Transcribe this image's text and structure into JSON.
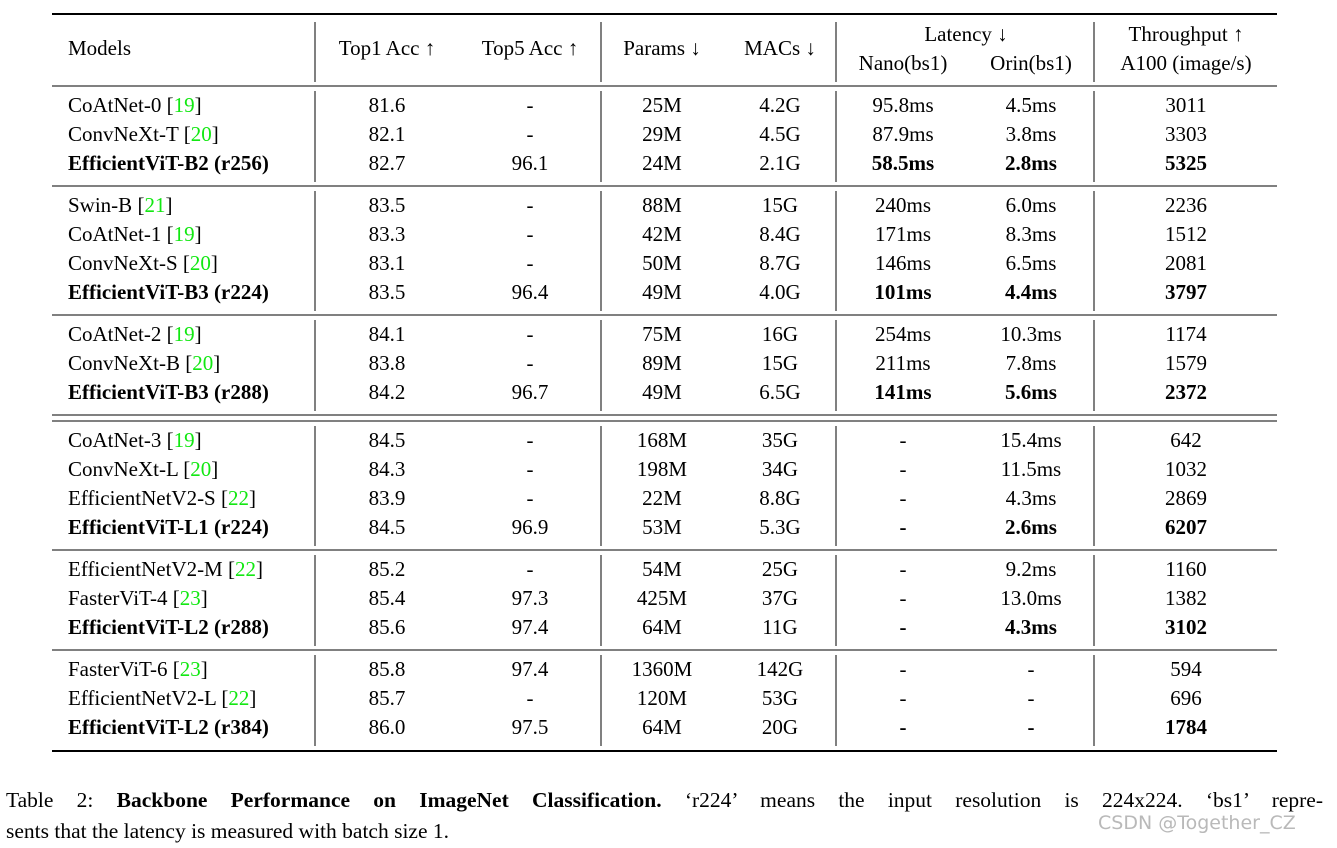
{
  "table": {
    "header": {
      "models": "Models",
      "top1": "Top1 Acc ↑",
      "top5": "Top5 Acc ↑",
      "params": "Params ↓",
      "macs": "MACs ↓",
      "latency": "Latency ↓",
      "nano": "Nano(bs1)",
      "orin": "Orin(bs1)",
      "throughput": "Throughput ↑",
      "a100": "A100 (image/s)"
    },
    "groups": [
      {
        "rows": [
          {
            "model": "CoAtNet-0",
            "ref": [
              "[",
              "19",
              "]"
            ],
            "cells": [
              "81.6",
              "-",
              "25M",
              "4.2G",
              "95.8ms",
              "4.5ms",
              "3011"
            ]
          },
          {
            "model": "ConvNeXt-T",
            "ref": [
              "[",
              "20",
              "]"
            ],
            "cells": [
              "82.1",
              "-",
              "29M",
              "4.5G",
              "87.9ms",
              "3.8ms",
              "3303"
            ]
          },
          {
            "model": "EfficientViT-B2 (r256)",
            "cells": [
              "82.7",
              "96.1",
              "24M",
              "2.1G",
              "58.5ms",
              "2.8ms",
              "5325"
            ]
          }
        ]
      },
      {
        "rows": [
          {
            "model": "Swin-B",
            "ref": [
              "[",
              "21",
              "]"
            ],
            "cells": [
              "83.5",
              "-",
              "88M",
              "15G",
              "240ms",
              "6.0ms",
              "2236"
            ]
          },
          {
            "model": "CoAtNet-1",
            "ref": [
              "[",
              "19",
              "]"
            ],
            "cells": [
              "83.3",
              "-",
              "42M",
              "8.4G",
              "171ms",
              "8.3ms",
              "1512"
            ]
          },
          {
            "model": "ConvNeXt-S",
            "ref": [
              "[",
              "20",
              "]"
            ],
            "cells": [
              "83.1",
              "-",
              "50M",
              "8.7G",
              "146ms",
              "6.5ms",
              "2081"
            ]
          },
          {
            "model": "EfficientViT-B3 (r224)",
            "cells": [
              "83.5",
              "96.4",
              "49M",
              "4.0G",
              "101ms",
              "4.4ms",
              "3797"
            ]
          }
        ]
      },
      {
        "rows": [
          {
            "model": "CoAtNet-2",
            "ref": [
              "[",
              "19",
              "]"
            ],
            "cells": [
              "84.1",
              "-",
              "75M",
              "16G",
              "254ms",
              "10.3ms",
              "1174"
            ]
          },
          {
            "model": "ConvNeXt-B",
            "ref": [
              "[",
              "20",
              "]"
            ],
            "cells": [
              "83.8",
              "-",
              "89M",
              "15G",
              "211ms",
              "7.8ms",
              "1579"
            ]
          },
          {
            "model": "EfficientViT-B3 (r288)",
            "cells": [
              "84.2",
              "96.7",
              "49M",
              "6.5G",
              "141ms",
              "5.6ms",
              "2372"
            ]
          }
        ]
      },
      {
        "rows": [
          {
            "model": "CoAtNet-3",
            "ref": [
              "[",
              "19",
              "]"
            ],
            "cells": [
              "84.5",
              "-",
              "168M",
              "35G",
              "-",
              "15.4ms",
              "642"
            ]
          },
          {
            "model": "ConvNeXt-L",
            "ref": [
              "[",
              "20",
              "]"
            ],
            "cells": [
              "84.3",
              "-",
              "198M",
              "34G",
              "-",
              "11.5ms",
              "1032"
            ]
          },
          {
            "model": "EfficientNetV2-S",
            "ref": [
              "[",
              "22",
              "]"
            ],
            "cells": [
              "83.9",
              "-",
              "22M",
              "8.8G",
              "-",
              "4.3ms",
              "2869"
            ]
          },
          {
            "model": "EfficientViT-L1 (r224)",
            "cells": [
              "84.5",
              "96.9",
              "53M",
              "5.3G",
              "-",
              "2.6ms",
              "6207"
            ]
          }
        ]
      },
      {
        "rows": [
          {
            "model": "EfficientNetV2-M",
            "ref": [
              "[",
              "22",
              "]"
            ],
            "cells": [
              "85.2",
              "-",
              "54M",
              "25G",
              "-",
              "9.2ms",
              "1160"
            ]
          },
          {
            "model": "FasterViT-4",
            "ref": [
              "[",
              "23",
              "]"
            ],
            "cells": [
              "85.4",
              "97.3",
              "425M",
              "37G",
              "-",
              "13.0ms",
              "1382"
            ]
          },
          {
            "model": "EfficientViT-L2 (r288)",
            "cells": [
              "85.6",
              "97.4",
              "64M",
              "11G",
              "-",
              "4.3ms",
              "3102"
            ]
          }
        ]
      },
      {
        "rows": [
          {
            "model": "FasterViT-6",
            "ref": [
              "[",
              "23",
              "]"
            ],
            "cells": [
              "85.8",
              "97.4",
              "1360M",
              "142G",
              "-",
              "-",
              "594"
            ]
          },
          {
            "model": "EfficientNetV2-L",
            "ref": [
              "[",
              "22",
              "]"
            ],
            "cells": [
              "85.7",
              "-",
              "120M",
              "53G",
              "-",
              "-",
              "696"
            ]
          },
          {
            "model": "EfficientViT-L2 (r384)",
            "cells": [
              "86.0",
              "97.5",
              "64M",
              "20G",
              "-",
              "-",
              "1784"
            ]
          }
        ]
      }
    ]
  },
  "caption": {
    "label": "Table 2:",
    "title": "Backbone Performance on ImageNet Classification.",
    "line1": "‘r224’ means the input resolution is 224x224. ‘bs1’ repre-",
    "line2": "sents that the latency is measured with batch size 1."
  },
  "watermark": "CSDN @Together_CZ"
}
